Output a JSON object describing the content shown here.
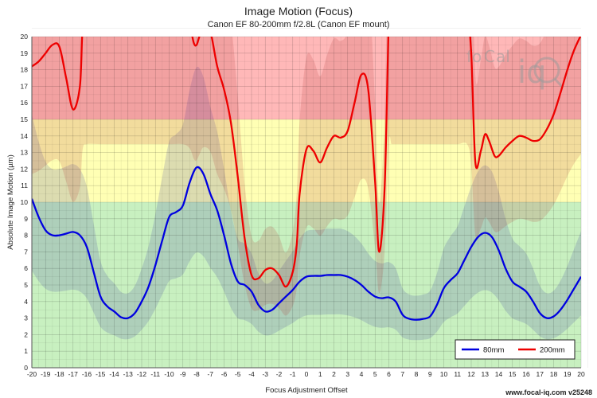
{
  "chart_data": {
    "type": "line",
    "title": "Image Motion (Focus)",
    "subtitle": "Canon EF 80-200mm f/2.8L (Canon EF mount)",
    "xlabel": "Focus Adjustment Offset",
    "ylabel": "Absolute Image Motion (µm)",
    "xlim": [
      -20,
      20
    ],
    "ylim": [
      0,
      20
    ],
    "x_ticks": [
      -20,
      -19,
      -18,
      -17,
      -16,
      -15,
      -14,
      -13,
      -12,
      -11,
      -10,
      -9,
      -8,
      -7,
      -6,
      -5,
      -4,
      -3,
      -2,
      -1,
      0,
      1,
      2,
      3,
      4,
      5,
      6,
      7,
      8,
      9,
      10,
      11,
      12,
      13,
      14,
      15,
      16,
      17,
      18,
      19,
      20
    ],
    "y_ticks": [
      0,
      1,
      2,
      3,
      4,
      5,
      6,
      7,
      8,
      9,
      10,
      11,
      12,
      13,
      14,
      15,
      16,
      17,
      18,
      19,
      20
    ],
    "grid": true,
    "legend_position": "bottom-right",
    "zones": [
      {
        "from": 0,
        "to": 10,
        "color": "#c8f0c0"
      },
      {
        "from": 10,
        "to": 15,
        "color": "#ffffb4"
      },
      {
        "from": 15,
        "to": 20,
        "color": "#ffb8b8"
      }
    ],
    "series": [
      {
        "name": "80mm",
        "color": "#0000e0",
        "x": [
          -20,
          -19.5,
          -19,
          -18.5,
          -18,
          -17.5,
          -17,
          -16.5,
          -16,
          -15.5,
          -15,
          -14.5,
          -14,
          -13.5,
          -13,
          -12.5,
          -12,
          -11.5,
          -11,
          -10.5,
          -10,
          -9.5,
          -9,
          -8.5,
          -8,
          -7.5,
          -7,
          -6.5,
          -6,
          -5.5,
          -5,
          -4.5,
          -4,
          -3.5,
          -3,
          -2.5,
          -2,
          -1.5,
          -1,
          -0.5,
          0,
          0.5,
          1,
          1.5,
          2,
          2.5,
          3,
          3.5,
          4,
          4.5,
          5,
          5.5,
          6,
          6.5,
          7,
          7.5,
          8,
          8.5,
          9,
          9.5,
          10,
          10.5,
          11,
          11.5,
          12,
          12.5,
          13,
          13.5,
          14,
          14.5,
          15,
          15.5,
          16,
          16.5,
          17,
          17.5,
          18,
          18.5,
          19,
          19.5,
          20
        ],
        "y": [
          10.2,
          9.1,
          8.3,
          8.0,
          8.0,
          8.1,
          8.2,
          8.0,
          7.3,
          5.8,
          4.3,
          3.7,
          3.4,
          3.05,
          3.0,
          3.3,
          4.0,
          4.9,
          6.2,
          7.7,
          9.1,
          9.4,
          9.8,
          11.2,
          12.1,
          11.7,
          10.5,
          9.5,
          8.0,
          6.3,
          5.2,
          5.0,
          4.6,
          3.8,
          3.4,
          3.5,
          3.9,
          4.3,
          4.7,
          5.2,
          5.5,
          5.55,
          5.55,
          5.6,
          5.6,
          5.6,
          5.5,
          5.3,
          5.0,
          4.6,
          4.3,
          4.2,
          4.25,
          4.0,
          3.2,
          2.95,
          2.9,
          2.95,
          3.1,
          3.8,
          4.8,
          5.3,
          5.7,
          6.5,
          7.3,
          7.9,
          8.15,
          7.9,
          7.1,
          6.0,
          5.2,
          4.9,
          4.6,
          4.0,
          3.3,
          3.0,
          3.1,
          3.5,
          4.1,
          4.8,
          5.5
        ]
      },
      {
        "name": "200mm",
        "color": "#ee0000",
        "x": [
          -20,
          -19.5,
          -19,
          -18.5,
          -18,
          -17.5,
          -17,
          -16.5,
          -16.3,
          -16,
          -15,
          -14,
          -13,
          -12,
          -11,
          -10,
          -9,
          -8.5,
          -8.2,
          -8,
          -7.8,
          -7.5,
          -7,
          -6.5,
          -6,
          -5.5,
          -5,
          -4.5,
          -4,
          -3.5,
          -3,
          -2.5,
          -2,
          -1.5,
          -1,
          -0.7,
          -0.5,
          0,
          0.5,
          1,
          1.5,
          2,
          2.5,
          3,
          3.5,
          4,
          4.5,
          5,
          5.3,
          5.7,
          6,
          6.2,
          6.5,
          7,
          8,
          9,
          10,
          11,
          11.7,
          12,
          12.3,
          12.7,
          13,
          13.3,
          13.7,
          14,
          14.5,
          15,
          15.5,
          16,
          16.5,
          17,
          17.5,
          18,
          18.5,
          19,
          19.5,
          20
        ],
        "y": [
          18.2,
          18.5,
          19.0,
          19.5,
          19.4,
          17.5,
          15.6,
          17.0,
          20.5,
          21.0,
          21.0,
          21.0,
          21.0,
          21.0,
          21.0,
          21.0,
          21.0,
          20.6,
          19.6,
          19.5,
          20.0,
          20.7,
          20.3,
          18.2,
          16.8,
          14.8,
          11.5,
          7.8,
          5.6,
          5.4,
          5.9,
          6.0,
          5.6,
          4.9,
          5.8,
          7.5,
          10.5,
          13.2,
          13.1,
          12.4,
          13.3,
          14.0,
          13.9,
          14.3,
          16.0,
          17.7,
          16.8,
          11.2,
          7.0,
          11.0,
          21.0,
          21.0,
          21.0,
          21.0,
          21.0,
          21.0,
          21.0,
          21.0,
          21.0,
          19.0,
          12.4,
          13.1,
          14.1,
          13.7,
          12.8,
          12.8,
          13.3,
          13.7,
          14.0,
          13.9,
          13.7,
          13.8,
          14.4,
          15.3,
          16.6,
          18.0,
          19.2,
          20.1
        ]
      }
    ]
  },
  "footer": "www.focal-iq.com  v25248"
}
